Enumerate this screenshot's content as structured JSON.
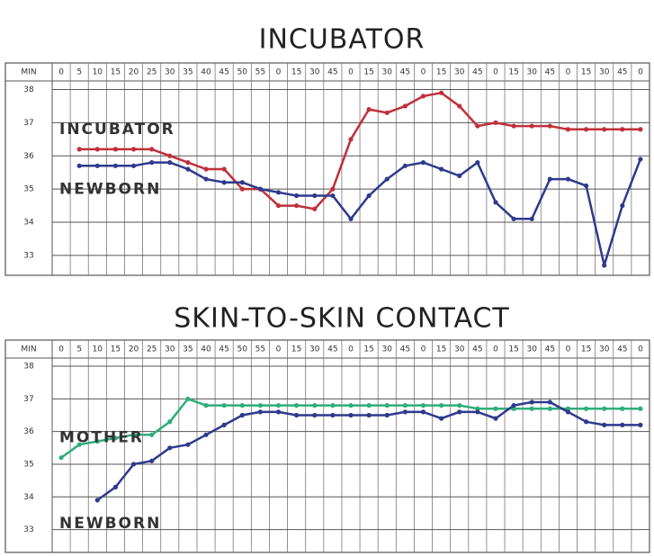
{
  "charts": [
    {
      "chart_data": {
        "type": "line",
        "title": "INCUBATOR",
        "xlabel": "MIN",
        "categories": [
          "0",
          "5",
          "10",
          "15",
          "20",
          "25",
          "30",
          "35",
          "40",
          "45",
          "50",
          "55",
          "0",
          "15",
          "30",
          "45",
          "0",
          "15",
          "30",
          "45",
          "0",
          "15",
          "30",
          "45",
          "0",
          "15",
          "30",
          "45",
          "0",
          "15",
          "30",
          "45",
          "0"
        ],
        "series": [
          {
            "name": "INCUBATOR",
            "color": "#c0303a",
            "values": [
              null,
              36.2,
              36.2,
              36.2,
              36.2,
              36.2,
              36.0,
              35.8,
              35.6,
              35.6,
              35.0,
              35.0,
              34.5,
              34.5,
              34.4,
              35.0,
              36.5,
              37.4,
              37.3,
              37.5,
              37.8,
              37.9,
              37.5,
              36.9,
              37.0,
              36.9,
              36.9,
              36.9,
              36.8,
              36.8,
              36.8,
              36.8,
              36.8
            ]
          },
          {
            "name": "NEWBORN",
            "color": "#2e3a8c",
            "values": [
              null,
              35.7,
              35.7,
              35.7,
              35.7,
              35.8,
              35.8,
              35.6,
              35.3,
              35.2,
              35.2,
              35.0,
              34.9,
              34.8,
              34.8,
              34.8,
              34.1,
              34.8,
              35.3,
              35.7,
              35.8,
              35.6,
              35.4,
              35.8,
              34.6,
              34.1,
              34.1,
              35.3,
              35.3,
              35.1,
              32.7,
              34.5,
              35.9
            ]
          }
        ],
        "ylim": [
          32.4,
          38.8
        ],
        "yticks": [
          33,
          34,
          35,
          36,
          37,
          38
        ],
        "grid": true
      }
    },
    {
      "chart_data": {
        "type": "line",
        "title": "SKIN-TO-SKIN CONTACT",
        "xlabel": "MIN",
        "categories": [
          "0",
          "5",
          "10",
          "15",
          "20",
          "25",
          "30",
          "35",
          "40",
          "45",
          "50",
          "55",
          "0",
          "15",
          "30",
          "45",
          "0",
          "15",
          "30",
          "45",
          "0",
          "15",
          "30",
          "45",
          "0",
          "15",
          "30",
          "45",
          "0",
          "15",
          "30",
          "45",
          "0"
        ],
        "series": [
          {
            "name": "MOTHER",
            "color": "#2fae7a",
            "values": [
              35.2,
              35.6,
              35.7,
              35.8,
              35.9,
              35.9,
              36.3,
              37.0,
              36.8,
              36.8,
              36.8,
              36.8,
              36.8,
              36.8,
              36.8,
              36.8,
              36.8,
              36.8,
              36.8,
              36.8,
              36.8,
              36.8,
              36.8,
              36.7,
              36.7,
              36.7,
              36.7,
              36.7,
              36.7,
              36.7,
              36.7,
              36.7,
              36.7
            ]
          },
          {
            "name": "NEWBORN",
            "color": "#2e3a8c",
            "values": [
              null,
              null,
              33.9,
              34.3,
              35.0,
              35.1,
              35.5,
              35.6,
              35.9,
              36.2,
              36.5,
              36.6,
              36.6,
              36.5,
              36.5,
              36.5,
              36.5,
              36.5,
              36.5,
              36.6,
              36.6,
              36.4,
              36.6,
              36.6,
              36.4,
              36.8,
              36.9,
              36.9,
              36.6,
              36.3,
              36.2,
              36.2,
              36.2
            ]
          }
        ],
        "ylim": [
          32.3,
          38.8
        ],
        "yticks": [
          33,
          34,
          35,
          36,
          37,
          38
        ],
        "grid": true
      }
    }
  ]
}
